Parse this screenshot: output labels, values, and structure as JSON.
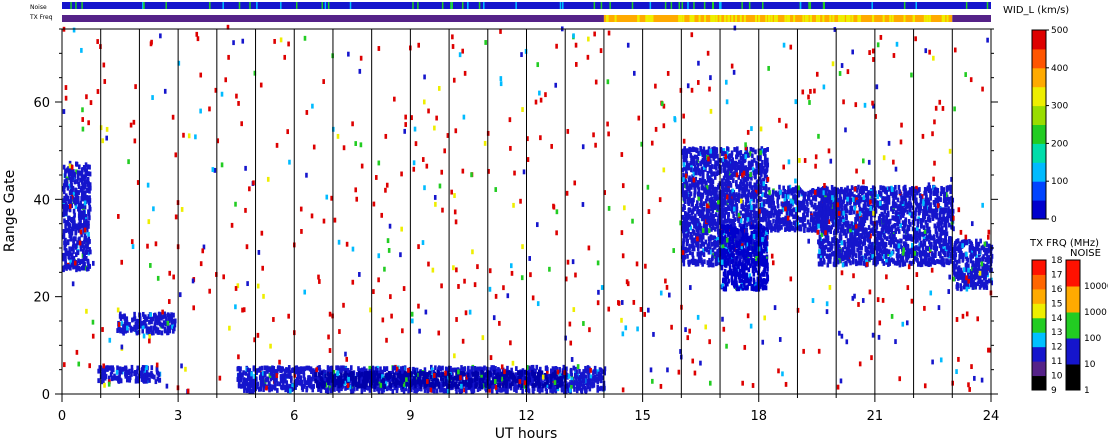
{
  "chart_data": {
    "type": "heatmap",
    "plot_kind": "SuperDARN range-time (spectral width)",
    "xlabel": "UT hours",
    "ylabel": "Range Gate",
    "xlim": [
      0,
      24
    ],
    "ylim": [
      0,
      75
    ],
    "x_ticks": [
      0,
      3,
      6,
      9,
      12,
      15,
      18,
      21,
      24
    ],
    "y_ticks": [
      0,
      20,
      40,
      60
    ],
    "grid": "vertical lines every 1 hour",
    "strip_labels": {
      "noise": "Noise",
      "txfreq": "TX Freq"
    },
    "colorbars": {
      "width": {
        "title": "WID_L (km/s)",
        "ticks": [
          0,
          100,
          200,
          300,
          400,
          500
        ],
        "range": [
          0,
          500
        ],
        "colors": [
          "#0000cc",
          "#0044ff",
          "#00bbff",
          "#00ddaa",
          "#22cc22",
          "#99dd00",
          "#eeee00",
          "#ffaa00",
          "#ff5500",
          "#dd0000"
        ]
      },
      "tx_freq": {
        "title": "TX FRQ (MHz)",
        "ticks": [
          9,
          10,
          11,
          12,
          13,
          14,
          15,
          16,
          17,
          18
        ],
        "colors": [
          "#000000",
          "#552288",
          "#1515cc",
          "#00c0ff",
          "#22cc22",
          "#eeee00",
          "#ffaa00",
          "#ff6600",
          "#ff1100"
        ]
      },
      "noise": {
        "title": "NOISE",
        "ticks": [
          "1",
          "10",
          "100",
          "1000",
          "10000"
        ],
        "colors": [
          "#000000",
          "#1515cc",
          "#22cc22",
          "#ffaa00",
          "#ff1100"
        ]
      }
    },
    "top_strips": {
      "noise_dominant": "blue",
      "txfreq": [
        {
          "from": 0,
          "to": 14,
          "mhz": "10"
        },
        {
          "from": 14,
          "to": 23,
          "mhz": "14-15"
        },
        {
          "from": 23,
          "to": 24,
          "mhz": "10"
        }
      ]
    },
    "echo_regions": [
      {
        "t0": 0.0,
        "t1": 0.7,
        "g0": 25,
        "g1": 47,
        "color": "#1515cc"
      },
      {
        "t0": 1.4,
        "t1": 2.9,
        "g0": 12,
        "g1": 16,
        "color": "#1515cc"
      },
      {
        "t0": 0.9,
        "t1": 2.5,
        "g0": 2,
        "g1": 5,
        "color": "#1515cc"
      },
      {
        "t0": 4.5,
        "t1": 14.0,
        "g0": 0,
        "g1": 5,
        "color": "#1515cc"
      },
      {
        "t0": 6.5,
        "t1": 13.0,
        "g0": 1,
        "g1": 4,
        "color": "#0000aa"
      },
      {
        "t0": 16.0,
        "t1": 18.2,
        "g0": 26,
        "g1": 50,
        "color": "#1515cc"
      },
      {
        "t0": 17.0,
        "t1": 18.2,
        "g0": 21,
        "g1": 34,
        "color": "#0000cc"
      },
      {
        "t0": 18.2,
        "t1": 20.0,
        "g0": 33,
        "g1": 42,
        "color": "#1515cc"
      },
      {
        "t0": 19.5,
        "t1": 23.0,
        "g0": 26,
        "g1": 42,
        "color": "#1515cc"
      },
      {
        "t0": 23.0,
        "t1": 24.0,
        "g0": 21,
        "g1": 31,
        "color": "#1515cc"
      }
    ]
  }
}
